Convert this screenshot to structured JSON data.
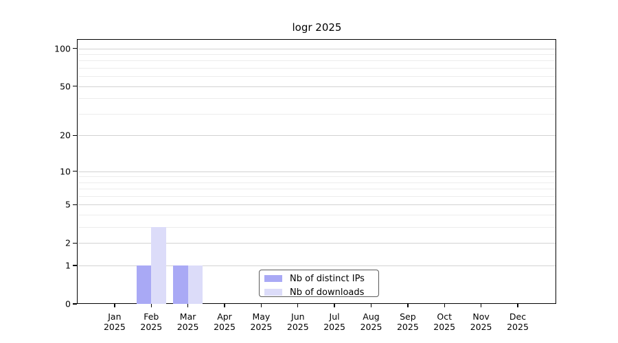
{
  "chart_data": {
    "type": "bar",
    "title": "logr 2025",
    "xlabel": "",
    "ylabel": "",
    "categories": [
      "Jan",
      "Feb",
      "Mar",
      "Apr",
      "May",
      "Jun",
      "Jul",
      "Aug",
      "Sep",
      "Oct",
      "Nov",
      "Dec"
    ],
    "year": "2025",
    "series": [
      {
        "name": "Nb of distinct IPs",
        "color": "#a9a9f5",
        "values": [
          0,
          1,
          1,
          0,
          0,
          0,
          0,
          0,
          0,
          0,
          0,
          0
        ]
      },
      {
        "name": "Nb of downloads",
        "color": "#dcdcf9",
        "values": [
          0,
          3,
          1,
          0,
          0,
          0,
          0,
          0,
          0,
          0,
          0,
          0
        ]
      }
    ],
    "yscale": "log10(1+x)",
    "yticks": [
      0,
      1,
      2,
      5,
      10,
      20,
      50,
      100
    ],
    "minor_yticks": [
      3,
      4,
      6,
      7,
      8,
      9,
      30,
      40,
      60,
      70,
      80,
      90
    ],
    "ylim": [
      0,
      117
    ],
    "grid": true,
    "legend_position": "lower center"
  }
}
